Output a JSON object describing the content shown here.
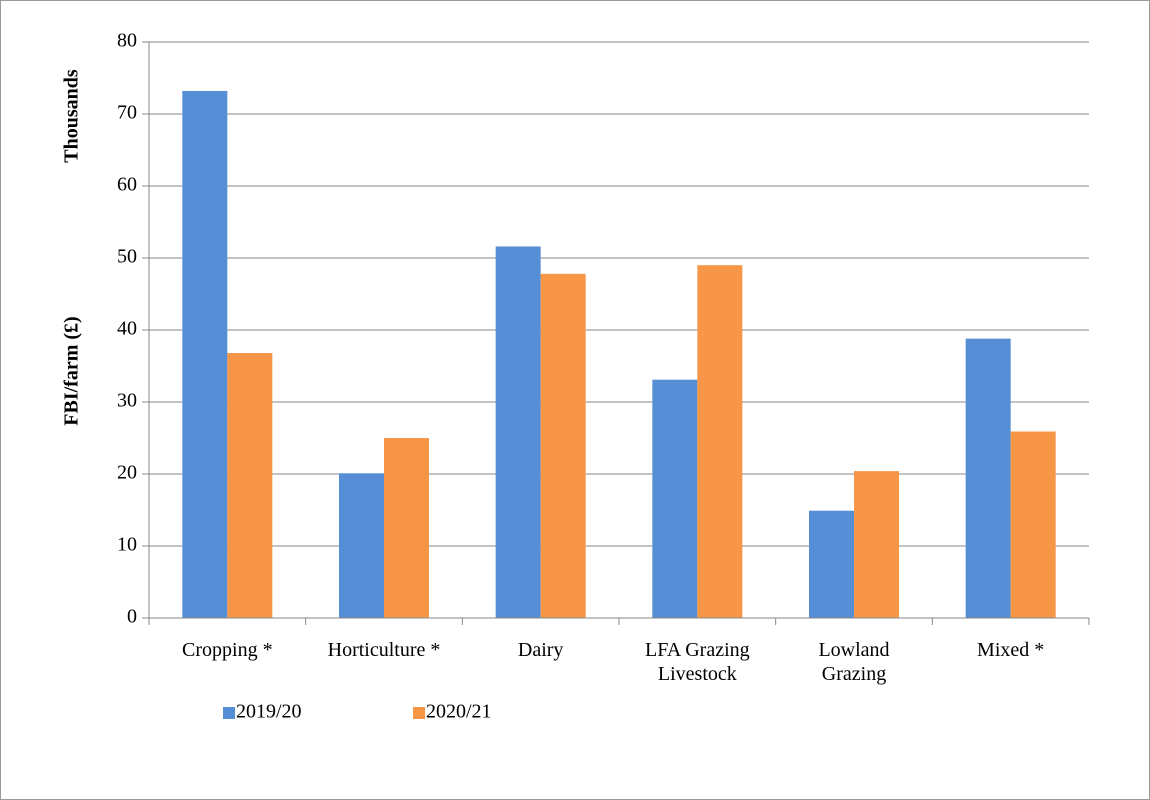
{
  "chart_data": {
    "type": "bar",
    "y_axis_label": "FBI/farm (£)",
    "y_axis_unit_label": "Thousands",
    "categories": [
      "Cropping *",
      "Horticulture *",
      "Dairy",
      "LFA Grazing Livestock",
      "Lowland Grazing",
      "Mixed *"
    ],
    "series": [
      {
        "name": "2019/20",
        "color": "#558ed5",
        "values": [
          73.2,
          20.1,
          51.6,
          33.1,
          14.9,
          38.8
        ]
      },
      {
        "name": "2020/21",
        "color": "#f79646",
        "values": [
          36.8,
          25.0,
          47.8,
          49.0,
          20.4,
          25.9
        ]
      }
    ],
    "ylim": [
      0,
      80
    ],
    "yticks": [
      0,
      10,
      20,
      30,
      40,
      50,
      60,
      70,
      80
    ],
    "grid": true,
    "legend": "bottom"
  }
}
